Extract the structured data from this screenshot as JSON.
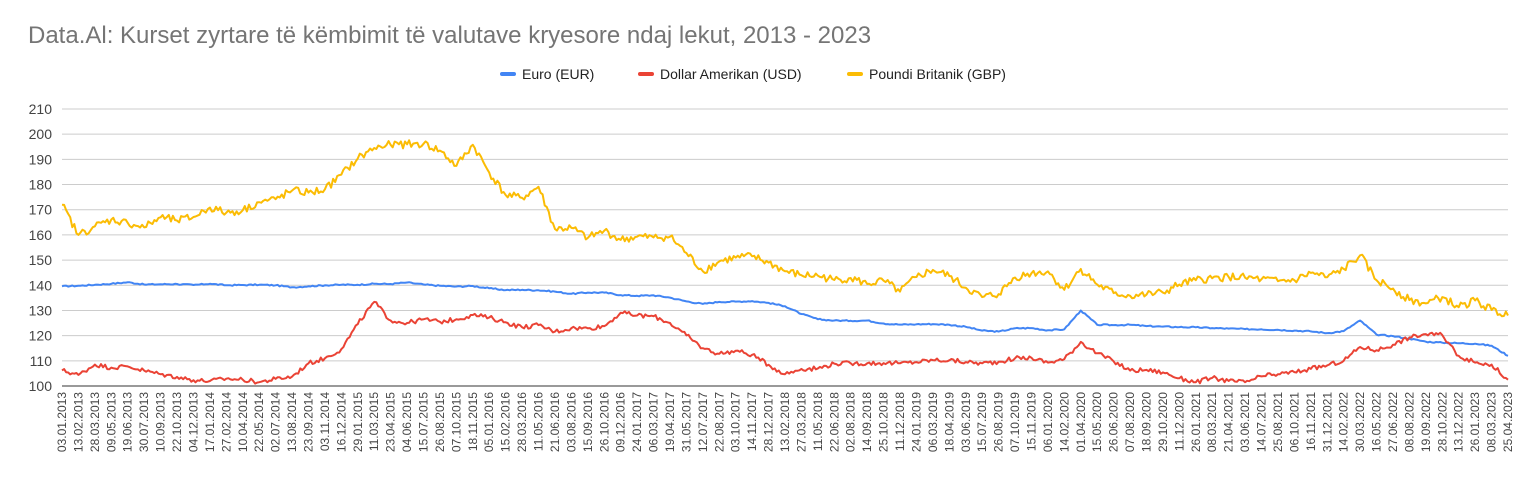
{
  "title": "Data.Al: Kurset zyrtare të këmbimit të valutave kryesore ndaj lekut, 2013 - 2023",
  "legend": [
    {
      "label": "Euro (EUR)",
      "color": "#4285f4"
    },
    {
      "label": "Dollar Amerikan (USD)",
      "color": "#ea4335"
    },
    {
      "label": "Poundi Britanik (GBP)",
      "color": "#fbbc04"
    }
  ],
  "chart_data": {
    "type": "line",
    "title": "Data.Al: Kurset zyrtare të këmbimit të valutave kryesore ndaj lekut, 2013 - 2023",
    "xlabel": "",
    "ylabel": "",
    "ylim": [
      100,
      210
    ],
    "yticks": [
      100,
      110,
      120,
      130,
      140,
      150,
      160,
      170,
      180,
      190,
      200,
      210
    ],
    "grid": true,
    "legend_position": "top-center",
    "xticks": [
      "03.01.2013",
      "13.02.2013",
      "28.03.2013",
      "09.05.2013",
      "19.06.2013",
      "30.07.2013",
      "10.09.2013",
      "22.10.2013",
      "04.12.2013",
      "17.01.2014",
      "27.02.2014",
      "10.04.2014",
      "22.05.2014",
      "02.07.2014",
      "13.08.2014",
      "23.09.2014",
      "03.11.2014",
      "16.12.2014",
      "29.01.2015",
      "11.03.2015",
      "23.04.2015",
      "04.06.2015",
      "15.07.2015",
      "26.08.2015",
      "07.10.2015",
      "18.11.2015",
      "05.01.2016",
      "15.02.2016",
      "28.03.2016",
      "11.05.2016",
      "21.06.2016",
      "03.08.2016",
      "15.09.2016",
      "26.10.2016",
      "09.12.2016",
      "24.01.2017",
      "06.03.2017",
      "19.04.2017",
      "31.05.2017",
      "12.07.2017",
      "22.08.2017",
      "03.10.2017",
      "14.11.2017",
      "28.12.2017",
      "13.02.2018",
      "27.03.2018",
      "11.05.2018",
      "22.06.2018",
      "02.08.2018",
      "14.09.2018",
      "25.10.2018",
      "11.12.2018",
      "24.01.2019",
      "06.03.2019",
      "18.04.2019",
      "03.06.2019",
      "15.07.2019",
      "26.08.2019",
      "07.10.2019",
      "15.11.2019",
      "06.01.2020",
      "14.02.2020",
      "01.04.2020",
      "15.05.2020",
      "26.06.2020",
      "07.08.2020",
      "18.09.2020",
      "29.10.2020",
      "11.12.2020",
      "26.01.2021",
      "08.03.2021",
      "21.04.2021",
      "03.06.2021",
      "14.07.2021",
      "25.08.2021",
      "06.10.2021",
      "16.11.2021",
      "31.12.2021",
      "14.02.2022",
      "30.03.2022",
      "16.05.2022",
      "27.06.2022",
      "08.08.2022",
      "19.09.2022",
      "28.10.2022",
      "13.12.2022",
      "26.01.2023",
      "08.03.2023",
      "25.04.2023"
    ],
    "series": [
      {
        "name": "Euro (EUR)",
        "color": "#4285f4",
        "values": [
          139.6,
          139.8,
          140.2,
          140.6,
          141.2,
          140.3,
          140.4,
          140.5,
          140.1,
          140.6,
          140.0,
          140.1,
          140.2,
          140.0,
          139.2,
          139.6,
          140.0,
          140.2,
          140.2,
          140.6,
          140.5,
          141.1,
          140.3,
          139.8,
          139.5,
          139.7,
          138.8,
          138.1,
          138.2,
          138.0,
          137.5,
          136.6,
          137.1,
          137.1,
          136.1,
          135.8,
          136.0,
          135.1,
          133.6,
          132.6,
          133.4,
          133.5,
          133.7,
          133.0,
          131.7,
          128.6,
          126.5,
          126.0,
          125.9,
          126.0,
          124.8,
          124.4,
          124.5,
          124.6,
          124.3,
          123.5,
          122.0,
          121.6,
          122.9,
          123.0,
          122.1,
          122.5,
          130.0,
          124.3,
          124.2,
          124.3,
          123.8,
          123.6,
          123.4,
          123.3,
          123.0,
          122.8,
          122.6,
          122.5,
          122.3,
          122.0,
          121.7,
          121.0,
          121.8,
          126.0,
          120.4,
          119.8,
          118.8,
          117.6,
          117.2,
          117.0,
          116.8,
          116.0,
          112.0
        ]
      },
      {
        "name": "Dollar Amerikan (USD)",
        "color": "#ea4335",
        "values": [
          106.2,
          104.4,
          108.5,
          107.3,
          107.8,
          106.1,
          104.7,
          103.6,
          102.3,
          102.0,
          102.9,
          102.5,
          101.5,
          102.8,
          103.7,
          109.0,
          111.0,
          114.6,
          124.6,
          133.4,
          126.0,
          125.0,
          126.5,
          125.5,
          126.5,
          128.2,
          127.2,
          125.3,
          123.3,
          124.2,
          121.6,
          123.0,
          122.9,
          123.8,
          129.1,
          128.0,
          127.7,
          125.0,
          120.1,
          115.0,
          112.8,
          114.0,
          112.4,
          108.4,
          104.7,
          106.8,
          107.0,
          108.9,
          109.0,
          109.0,
          109.1,
          109.0,
          109.5,
          110.3,
          110.2,
          109.5,
          109.0,
          109.6,
          111.0,
          111.2,
          109.3,
          110.7,
          117.5,
          113.0,
          109.8,
          106.1,
          106.4,
          105.4,
          103.1,
          101.5,
          103.2,
          102.0,
          101.5,
          103.8,
          104.7,
          105.5,
          106.8,
          108.2,
          110.0,
          115.5,
          114.2,
          116.4,
          119.3,
          120.6,
          120.2,
          112.0,
          109.3,
          108.5,
          102.5
        ]
      },
      {
        "name": "Poundi Britanik (GBP)",
        "color": "#fbbc04",
        "values": [
          172.0,
          160.0,
          163.4,
          166.1,
          164.8,
          163.0,
          167.0,
          165.7,
          167.1,
          170.9,
          168.8,
          169.8,
          173.0,
          174.2,
          177.6,
          176.8,
          178.1,
          183.9,
          190.4,
          194.5,
          195.8,
          196.0,
          196.2,
          193.5,
          187.4,
          195.8,
          184.8,
          175.8,
          174.7,
          179.1,
          162.3,
          162.8,
          158.8,
          161.7,
          158.0,
          159.3,
          159.0,
          159.3,
          152.8,
          145.6,
          149.5,
          151.0,
          151.5,
          149.0,
          145.6,
          144.0,
          143.8,
          142.1,
          142.9,
          140.5,
          141.8,
          137.5,
          143.3,
          146.1,
          143.7,
          139.0,
          135.3,
          136.5,
          143.1,
          144.8,
          145.5,
          138.2,
          146.5,
          140.3,
          136.9,
          135.8,
          136.3,
          137.1,
          140.3,
          142.0,
          142.8,
          143.3,
          143.0,
          142.4,
          141.6,
          142.0,
          144.9,
          143.2,
          146.5,
          151.9,
          142.0,
          138.7,
          134.1,
          132.8,
          135.3,
          131.3,
          134.0,
          130.2,
          128.0
        ]
      }
    ]
  }
}
